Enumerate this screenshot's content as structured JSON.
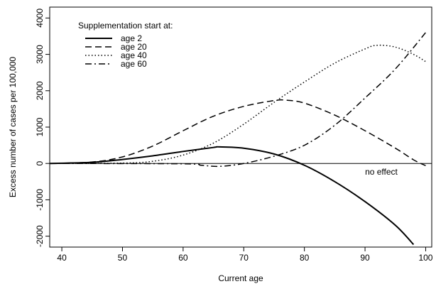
{
  "chart_data": {
    "type": "line",
    "title": "",
    "xlabel": "Current age",
    "ylabel": "Excess number of cases per 100,000",
    "xlim": [
      38,
      101
    ],
    "ylim": [
      -2300,
      4300
    ],
    "xticks": [
      40,
      50,
      60,
      70,
      80,
      90,
      100
    ],
    "yticks": [
      -2000,
      -1000,
      0,
      1000,
      2000,
      3000,
      4000
    ],
    "grid": false,
    "legend": {
      "title": "Supplementation start at:",
      "placement": "top-left"
    },
    "reference_line": {
      "y": 0,
      "label": "no effect"
    },
    "series": [
      {
        "name": "age 2",
        "style": "solid",
        "points": [
          [
            38,
            0
          ],
          [
            45,
            30
          ],
          [
            50,
            110
          ],
          [
            55,
            210
          ],
          [
            60,
            330
          ],
          [
            65,
            440
          ],
          [
            66,
            455
          ],
          [
            70,
            420
          ],
          [
            75,
            260
          ],
          [
            80,
            -50
          ],
          [
            85,
            -500
          ],
          [
            90,
            -1050
          ],
          [
            95,
            -1700
          ],
          [
            98,
            -2230
          ]
        ]
      },
      {
        "name": "age 20",
        "style": "dashed",
        "points": [
          [
            38,
            0
          ],
          [
            45,
            40
          ],
          [
            50,
            180
          ],
          [
            55,
            480
          ],
          [
            60,
            900
          ],
          [
            65,
            1300
          ],
          [
            70,
            1570
          ],
          [
            75,
            1730
          ],
          [
            77,
            1740
          ],
          [
            80,
            1660
          ],
          [
            85,
            1330
          ],
          [
            90,
            900
          ],
          [
            95,
            420
          ],
          [
            98,
            100
          ],
          [
            100,
            -60
          ]
        ]
      },
      {
        "name": "age 40",
        "style": "dotted",
        "points": [
          [
            38,
            0
          ],
          [
            50,
            10
          ],
          [
            55,
            60
          ],
          [
            60,
            230
          ],
          [
            65,
            560
          ],
          [
            70,
            1080
          ],
          [
            75,
            1680
          ],
          [
            80,
            2240
          ],
          [
            85,
            2760
          ],
          [
            90,
            3150
          ],
          [
            92,
            3250
          ],
          [
            95,
            3200
          ],
          [
            98,
            3000
          ],
          [
            100,
            2800
          ]
        ]
      },
      {
        "name": "age 60",
        "style": "dashdot",
        "points": [
          [
            38,
            0
          ],
          [
            60,
            -10
          ],
          [
            63,
            -50
          ],
          [
            66,
            -80
          ],
          [
            70,
            0
          ],
          [
            75,
            200
          ],
          [
            80,
            500
          ],
          [
            85,
            1050
          ],
          [
            90,
            1800
          ],
          [
            95,
            2600
          ],
          [
            100,
            3600
          ]
        ]
      }
    ]
  }
}
